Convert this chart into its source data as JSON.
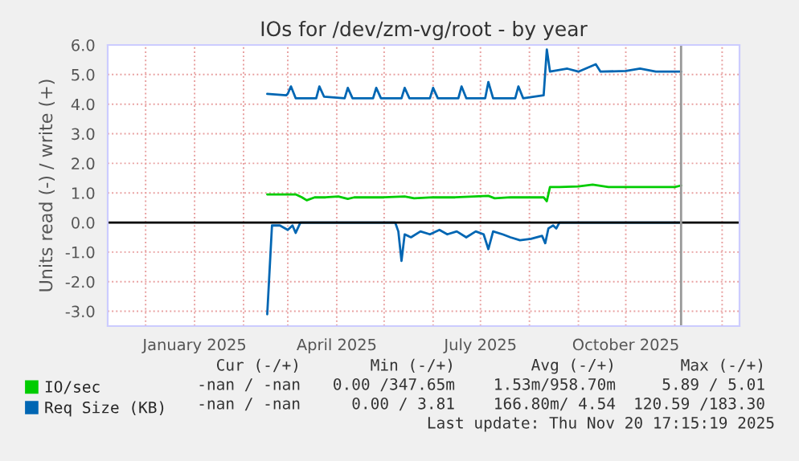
{
  "chart_data": {
    "type": "line",
    "title": "IOs for /dev/zm-vg/root - by year",
    "ylabel": "Units read (-) / write (+)",
    "xlim": [
      "2024-11-07",
      "2025-12-12"
    ],
    "ylim": [
      -3.5,
      6.0
    ],
    "yticks": [
      {
        "value": -3,
        "label": "-3.0"
      },
      {
        "value": -2,
        "label": "-2.0"
      },
      {
        "value": -1,
        "label": "-1.0"
      },
      {
        "value": 0,
        "label": "0.0"
      },
      {
        "value": 1,
        "label": "1.0"
      },
      {
        "value": 2,
        "label": "2.0"
      },
      {
        "value": 3,
        "label": "3.0"
      },
      {
        "value": 4,
        "label": "4.0"
      },
      {
        "value": 5,
        "label": "5.0"
      },
      {
        "value": 6,
        "label": "6.0"
      }
    ],
    "xticks": [
      {
        "value": "2024-12-01",
        "label": null
      },
      {
        "value": "2025-01-01",
        "label": "January 2025"
      },
      {
        "value": "2025-02-01",
        "label": null
      },
      {
        "value": "2025-03-01",
        "label": null
      },
      {
        "value": "2025-04-01",
        "label": "April 2025"
      },
      {
        "value": "2025-05-01",
        "label": null
      },
      {
        "value": "2025-06-01",
        "label": null
      },
      {
        "value": "2025-07-01",
        "label": "July 2025"
      },
      {
        "value": "2025-08-01",
        "label": null
      },
      {
        "value": "2025-09-01",
        "label": null
      },
      {
        "value": "2025-10-01",
        "label": "October 2025"
      },
      {
        "value": "2025-11-01",
        "label": null
      },
      {
        "value": "2025-12-01",
        "label": null
      }
    ],
    "grid": true,
    "legend": "bottom left",
    "ref_lines": [
      {
        "axis": "y",
        "value": 0,
        "color": "#000000"
      },
      {
        "axis": "x",
        "value": "2025-11-05",
        "color": "#999999"
      }
    ],
    "series": [
      {
        "name": "IO/sec",
        "color": "#00cc00",
        "x": [
          "2025-02-16",
          "2025-03-06",
          "2025-03-10",
          "2025-03-13",
          "2025-03-18",
          "2025-03-25",
          "2025-04-02",
          "2025-04-08",
          "2025-04-12",
          "2025-04-20",
          "2025-05-01",
          "2025-05-14",
          "2025-05-20",
          "2025-06-01",
          "2025-06-15",
          "2025-07-06",
          "2025-07-10",
          "2025-07-20",
          "2025-08-01",
          "2025-08-10",
          "2025-08-12",
          "2025-08-14",
          "2025-08-20",
          "2025-09-01",
          "2025-09-10",
          "2025-09-20",
          "2025-10-01",
          "2025-10-10",
          "2025-10-20",
          "2025-11-01",
          "2025-11-05"
        ],
        "values": [
          0.95,
          0.95,
          0.85,
          0.75,
          0.85,
          0.85,
          0.88,
          0.8,
          0.85,
          0.85,
          0.85,
          0.88,
          0.82,
          0.85,
          0.85,
          0.9,
          0.82,
          0.85,
          0.85,
          0.85,
          0.72,
          1.2,
          1.2,
          1.22,
          1.28,
          1.2,
          1.2,
          1.2,
          1.2,
          1.2,
          1.25
        ]
      },
      {
        "name": "Req Size (KB)",
        "color": "#0066b3",
        "x": [
          "2025-02-16",
          "2025-02-28",
          "2025-03-01",
          "2025-03-03",
          "2025-03-06",
          "2025-03-19",
          "2025-03-21",
          "2025-03-24",
          "2025-04-06",
          "2025-04-08",
          "2025-04-11",
          "2025-04-24",
          "2025-04-26",
          "2025-04-29",
          "2025-05-12",
          "2025-05-14",
          "2025-05-17",
          "2025-05-30",
          "2025-06-01",
          "2025-06-04",
          "2025-06-17",
          "2025-06-19",
          "2025-06-22",
          "2025-07-04",
          "2025-07-06",
          "2025-07-09",
          "2025-07-23",
          "2025-07-25",
          "2025-07-28",
          "2025-08-10",
          "2025-08-12",
          "2025-08-14",
          "2025-08-25",
          "2025-09-01",
          "2025-09-12",
          "2025-09-15",
          "2025-10-01",
          "2025-10-10",
          "2025-10-20",
          "2025-11-05"
        ],
        "values": [
          4.35,
          4.3,
          4.35,
          4.6,
          4.2,
          4.2,
          4.6,
          4.25,
          4.2,
          4.55,
          4.2,
          4.2,
          4.55,
          4.2,
          4.2,
          4.55,
          4.2,
          4.2,
          4.55,
          4.2,
          4.2,
          4.6,
          4.2,
          4.2,
          4.75,
          4.2,
          4.2,
          4.6,
          4.2,
          4.3,
          5.85,
          5.1,
          5.2,
          5.1,
          5.35,
          5.1,
          5.12,
          5.2,
          5.1,
          5.1
        ]
      },
      {
        "color": "#0066b3",
        "x": [
          "2025-02-16",
          "2025-02-19",
          "2025-02-24",
          "2025-03-01",
          "2025-03-04",
          "2025-03-06",
          "2025-03-09",
          "2025-05-08",
          "2025-05-10",
          "2025-05-12",
          "2025-05-14",
          "2025-05-18",
          "2025-05-24",
          "2025-05-30",
          "2025-06-05",
          "2025-06-10",
          "2025-06-16",
          "2025-06-22",
          "2025-06-28",
          "2025-07-03",
          "2025-07-06",
          "2025-07-09",
          "2025-07-15",
          "2025-07-20",
          "2025-07-26",
          "2025-08-02",
          "2025-08-09",
          "2025-08-11",
          "2025-08-13",
          "2025-08-16",
          "2025-08-18",
          "2025-08-20",
          "2025-11-05"
        ],
        "values": [
          -3.1,
          -0.1,
          -0.1,
          -0.25,
          -0.1,
          -0.35,
          0.0,
          0.0,
          -0.3,
          -1.3,
          -0.4,
          -0.5,
          -0.3,
          -0.4,
          -0.25,
          -0.4,
          -0.3,
          -0.5,
          -0.3,
          -0.4,
          -0.9,
          -0.3,
          -0.4,
          -0.5,
          -0.6,
          -0.55,
          -0.45,
          -0.7,
          -0.2,
          -0.1,
          -0.2,
          0.0,
          0.0
        ]
      }
    ],
    "annotations": [
      "Cur (-/+)",
      "Min (-/+)",
      "Avg (-/+)",
      "Max (-/+)",
      "-nan / -nan",
      "0.00 /347.65m",
      "1.53m/958.70m",
      "5.89 / 5.01",
      "-nan / -nan",
      "0.00 / 3.81",
      "166.80m/ 4.54",
      "120.59 /183.30",
      "Last update: Thu Nov 20 17:15:19 2025"
    ]
  }
}
